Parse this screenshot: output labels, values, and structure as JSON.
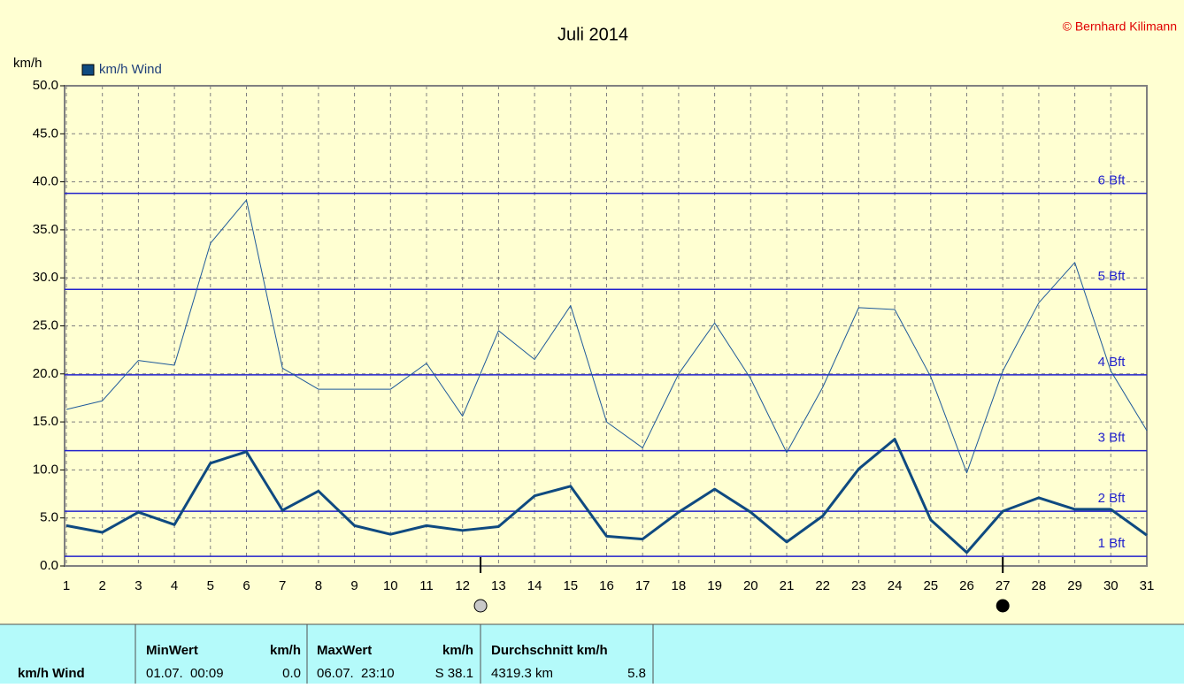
{
  "chart_data": {
    "type": "line",
    "title": "Juli 2014",
    "copyright": "© Bernhard Kilimann",
    "ylabel": "km/h",
    "x": [
      1,
      2,
      3,
      4,
      5,
      6,
      7,
      8,
      9,
      10,
      11,
      12,
      13,
      14,
      15,
      16,
      17,
      18,
      19,
      20,
      21,
      22,
      23,
      24,
      25,
      26,
      27,
      28,
      29,
      30,
      31
    ],
    "xlim": [
      1,
      31
    ],
    "xticks": [
      1,
      2,
      3,
      4,
      5,
      6,
      7,
      8,
      9,
      10,
      11,
      12,
      13,
      14,
      15,
      16,
      17,
      18,
      19,
      20,
      21,
      22,
      23,
      24,
      25,
      26,
      27,
      28,
      29,
      30,
      31
    ],
    "ylim": [
      0,
      50
    ],
    "yticks": [
      {
        "value": 0,
        "label": "0.0"
      },
      {
        "value": 5,
        "label": "5.0"
      },
      {
        "value": 10,
        "label": "10.0"
      },
      {
        "value": 15,
        "label": "15.0"
      },
      {
        "value": 20,
        "label": "20.0"
      },
      {
        "value": 25,
        "label": "25.0"
      },
      {
        "value": 30,
        "label": "30.0"
      },
      {
        "value": 35,
        "label": "35.0"
      },
      {
        "value": 40,
        "label": "40.0"
      },
      {
        "value": 45,
        "label": "45.0"
      },
      {
        "value": 50,
        "label": "50.0"
      }
    ],
    "grid": true,
    "series": [
      {
        "name": "km/h Wind",
        "color": "#0f4a80",
        "width": 3,
        "values": [
          4.2,
          3.5,
          5.6,
          4.3,
          10.7,
          11.9,
          5.8,
          7.8,
          4.2,
          3.3,
          4.2,
          3.7,
          4.1,
          7.3,
          8.3,
          3.1,
          2.8,
          5.6,
          8.0,
          5.6,
          2.5,
          5.2,
          10.1,
          13.2,
          4.8,
          1.4,
          5.7,
          7.1,
          5.9,
          5.9,
          3.2
        ]
      },
      {
        "color": "#1f5a9a",
        "width": 1,
        "values": [
          16.3,
          17.2,
          21.4,
          20.9,
          33.6,
          38.1,
          20.6,
          18.4,
          18.4,
          18.4,
          21.1,
          15.6,
          24.5,
          21.5,
          27.1,
          15.0,
          12.3,
          20.0,
          25.3,
          19.5,
          11.8,
          18.6,
          26.9,
          26.7,
          19.7,
          9.7,
          20.3,
          27.4,
          31.6,
          20.3,
          14.1
        ]
      }
    ],
    "bft_color": "#2222cc",
    "bft_lines": [
      {
        "value": 1.0,
        "label": "1 Bft"
      },
      {
        "value": 5.7,
        "label": "2 Bft"
      },
      {
        "value": 12.0,
        "label": "3 Bft"
      },
      {
        "value": 19.9,
        "label": "4 Bft"
      },
      {
        "value": 28.8,
        "label": "5 Bft"
      },
      {
        "value": 38.8,
        "label": "6 Bft"
      }
    ],
    "moon_markers": [
      {
        "x": 12.5,
        "color": "#c8c8c8"
      },
      {
        "x": 27,
        "color": "#000000"
      }
    ]
  },
  "table": {
    "row_label": "km/h Wind",
    "columns": [
      {
        "title": "MinWert",
        "unit": "km/h",
        "left": "01.07.  00:09",
        "right": "0.0"
      },
      {
        "title": "MaxWert",
        "unit": "km/h",
        "left": "06.07.  23:10",
        "right": "S 38.1"
      },
      {
        "title": "Durchschnitt km/h",
        "left": "4319.3 km",
        "right": "5.8"
      }
    ]
  }
}
